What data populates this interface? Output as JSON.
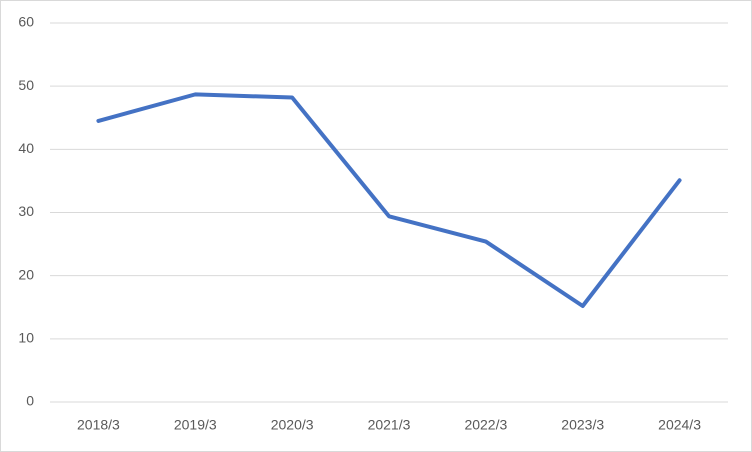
{
  "chart_data": {
    "type": "line",
    "categories": [
      "2018/3",
      "2019/3",
      "2020/3",
      "2021/3",
      "2022/3",
      "2023/3",
      "2024/3"
    ],
    "values": [
      44.5,
      48.7,
      48.2,
      29.4,
      25.4,
      15.2,
      35.1
    ],
    "color": "#4472c4",
    "ylim": [
      0,
      60
    ],
    "yticks": [
      0,
      10,
      20,
      30,
      40,
      50,
      60
    ],
    "grid": true
  }
}
